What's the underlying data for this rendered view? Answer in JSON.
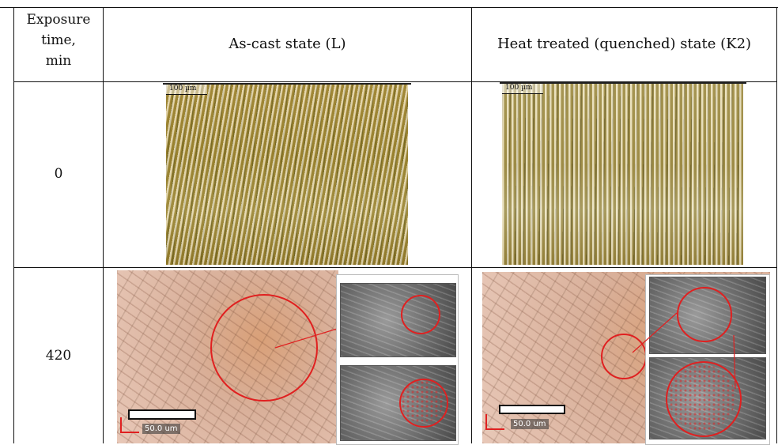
{
  "table": {
    "header": {
      "col1": [
        "Exposure",
        "time,",
        "min"
      ],
      "col2": "As-cast state (L)",
      "col3": "Heat treated (quenched) state (K2)"
    },
    "rows": [
      {
        "time": "0",
        "scale_L": "100 µm",
        "scale_K2": "100 µm"
      },
      {
        "time": "420",
        "scale_L": "50.0 um",
        "scale_K2": "50.0 um"
      }
    ]
  },
  "colors": {
    "grid": "#111111",
    "highlight": "#e02020"
  }
}
